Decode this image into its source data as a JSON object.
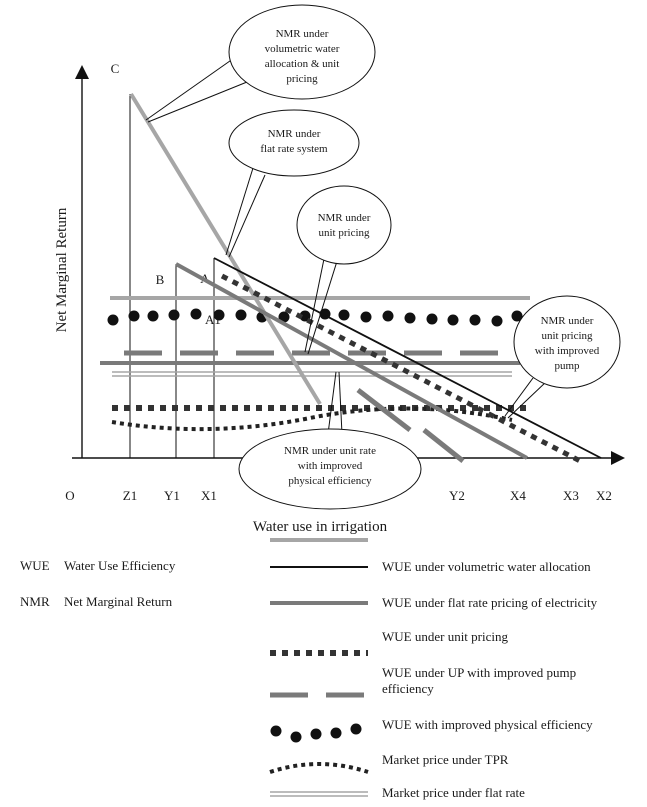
{
  "diagram": {
    "y_axis_label": "Net Marginal Return",
    "x_axis_label": "Water use in irrigation",
    "point_labels": {
      "C": "C",
      "B": "B",
      "A": "A",
      "A1": "A1",
      "O": "O",
      "Z1": "Z1",
      "Y1": "Y1",
      "X1": "X1",
      "Y2": "Y2",
      "X4": "X4",
      "X3": "X3",
      "X2": "X2"
    },
    "callouts": {
      "volumetric": [
        "NMR under",
        "volumetric water",
        "allocation & unit",
        "pricing"
      ],
      "flat_rate": [
        "NMR under",
        "flat rate system"
      ],
      "unit_pricing": [
        "NMR under",
        "unit pricing"
      ],
      "improved_pump": [
        "NMR under",
        "unit pricing",
        "with improved",
        "pump"
      ],
      "physical_eff": [
        "NMR under unit rate",
        "with improved",
        "physical efficiency"
      ]
    },
    "colors": {
      "light_gray": "#a6a6a6",
      "mid_gray": "#7a7a7a",
      "dark": "#333333",
      "black": "#111111"
    }
  },
  "abbreviations": [
    {
      "abbr": "WUE",
      "meaning": "Water Use Efficiency"
    },
    {
      "abbr": "NMR",
      "meaning": "Net Marginal Return"
    }
  ],
  "legend": [
    {
      "label": "WUE under volumetric water allocation",
      "style": "solid-black"
    },
    {
      "label": "WUE under flat rate pricing of electricity",
      "style": "solid-gray-thick"
    },
    {
      "label": "WUE under unit pricing",
      "style": "dotted-square"
    },
    {
      "label": "WUE under UP with improved pump efficiency",
      "style": "long-dash"
    },
    {
      "label": "WUE with improved physical efficiency",
      "style": "round-dots"
    },
    {
      "label": "Market price under TPR",
      "style": "dotted-curve"
    },
    {
      "label": "Market price under flat rate",
      "style": "double-line"
    }
  ]
}
